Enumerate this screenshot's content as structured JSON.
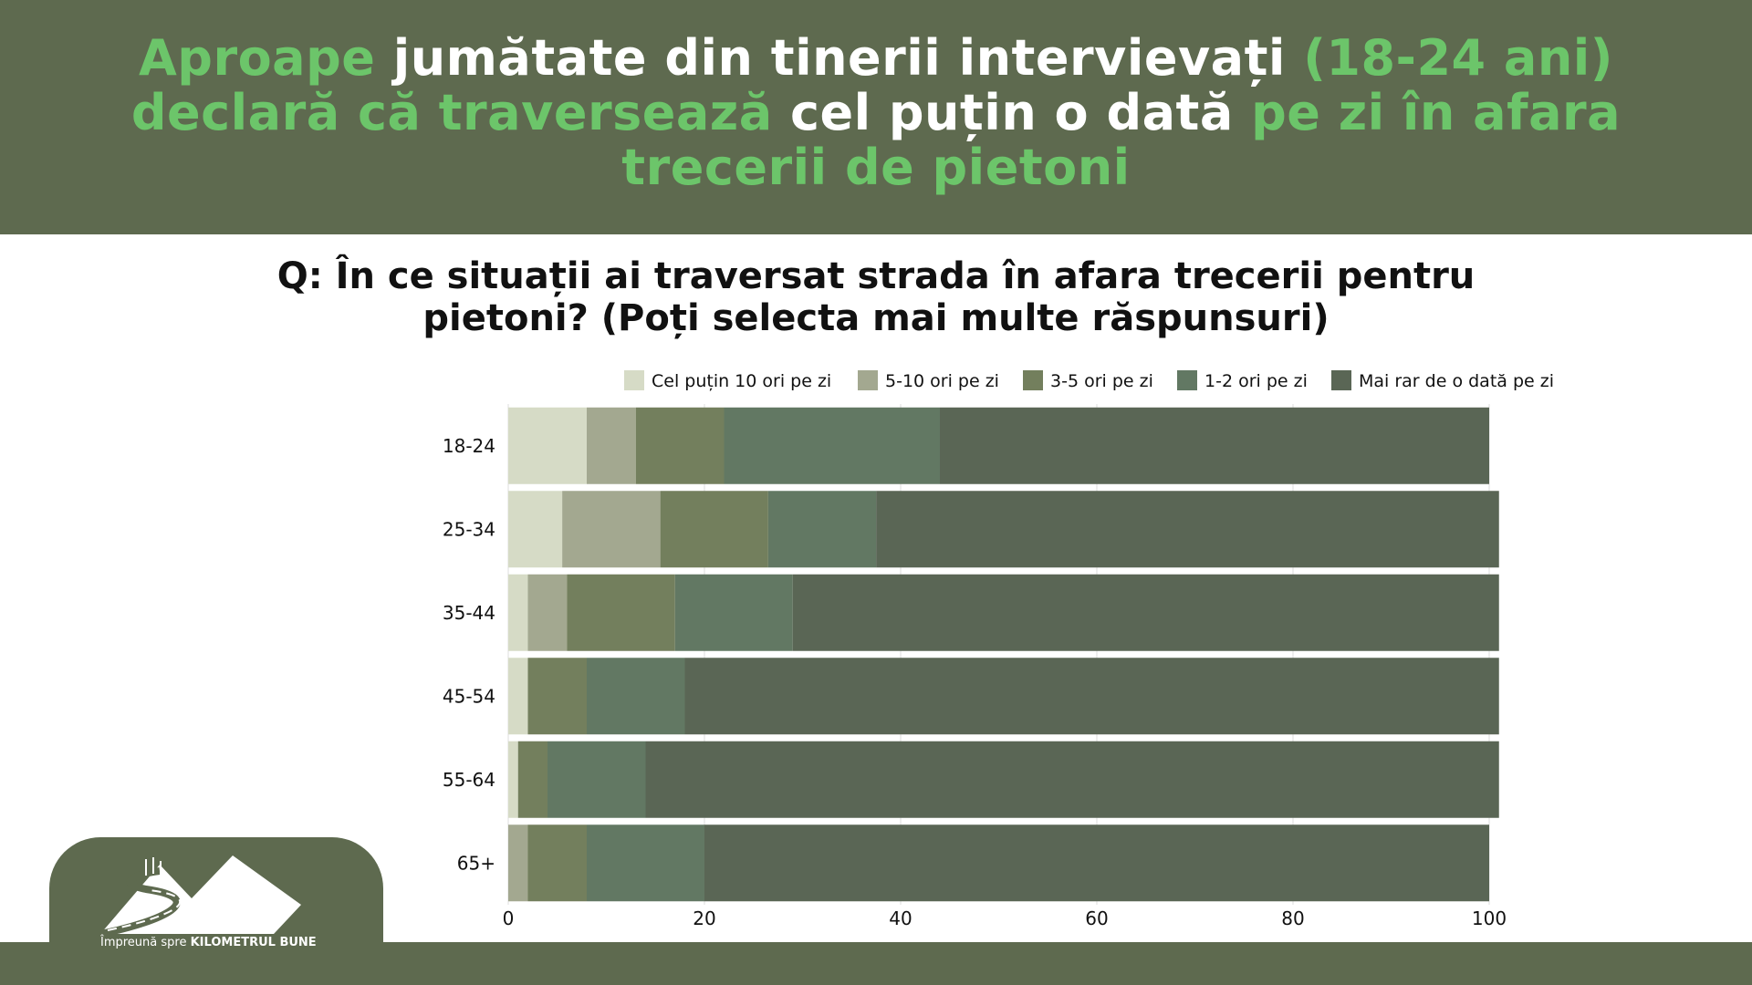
{
  "headline": {
    "parts": [
      {
        "text": "Aproape ",
        "color": "green"
      },
      {
        "text": "jumătate din tinerii intervievați ",
        "color": "white"
      },
      {
        "text": "(18-24 ani) declară că traversează ",
        "color": "green"
      },
      {
        "text": "cel puțin o dată ",
        "color": "white"
      },
      {
        "text": "pe zi în afara trecerii de pietoni",
        "color": "green"
      }
    ]
  },
  "question": "Q: În ce situații ai traversat strada în afara trecerii pentru pietoni? (Poți selecta mai multe răspunsuri)",
  "colors": {
    "header_bg": "#5e6a4f",
    "headline_green": "#6cc56a",
    "headline_white": "#ffffff"
  },
  "chart_data": {
    "type": "bar",
    "orientation": "horizontal",
    "stacked": true,
    "categories": [
      "18-24",
      "25-34",
      "35-44",
      "45-54",
      "55-64",
      "65+"
    ],
    "series": [
      {
        "name": "Cel puțin 10 ori pe zi",
        "color": "#d6dbc6",
        "values": [
          8,
          5.5,
          2,
          2,
          1,
          0
        ]
      },
      {
        "name": "5-10 ori pe zi",
        "color": "#a3a890",
        "values": [
          5,
          10,
          4,
          0,
          0,
          2
        ]
      },
      {
        "name": "3-5 ori pe zi",
        "color": "#737f5d",
        "values": [
          9,
          11,
          11,
          6,
          3,
          6
        ]
      },
      {
        "name": "1-2 ori pe zi",
        "color": "#627863",
        "values": [
          22,
          11,
          12,
          10,
          10,
          12
        ]
      },
      {
        "name": "Mai rar de o dată pe zi",
        "color": "#5a6655",
        "values": [
          56,
          63.5,
          72,
          83,
          87,
          80
        ]
      }
    ],
    "xlim": [
      0,
      100
    ],
    "xticks": [
      0,
      20,
      40,
      60,
      80,
      100
    ],
    "grid": true,
    "legend": "top"
  },
  "logo": {
    "text_regular": "Împreună spre ",
    "text_bold": "KILOMETRUL BUNE"
  }
}
